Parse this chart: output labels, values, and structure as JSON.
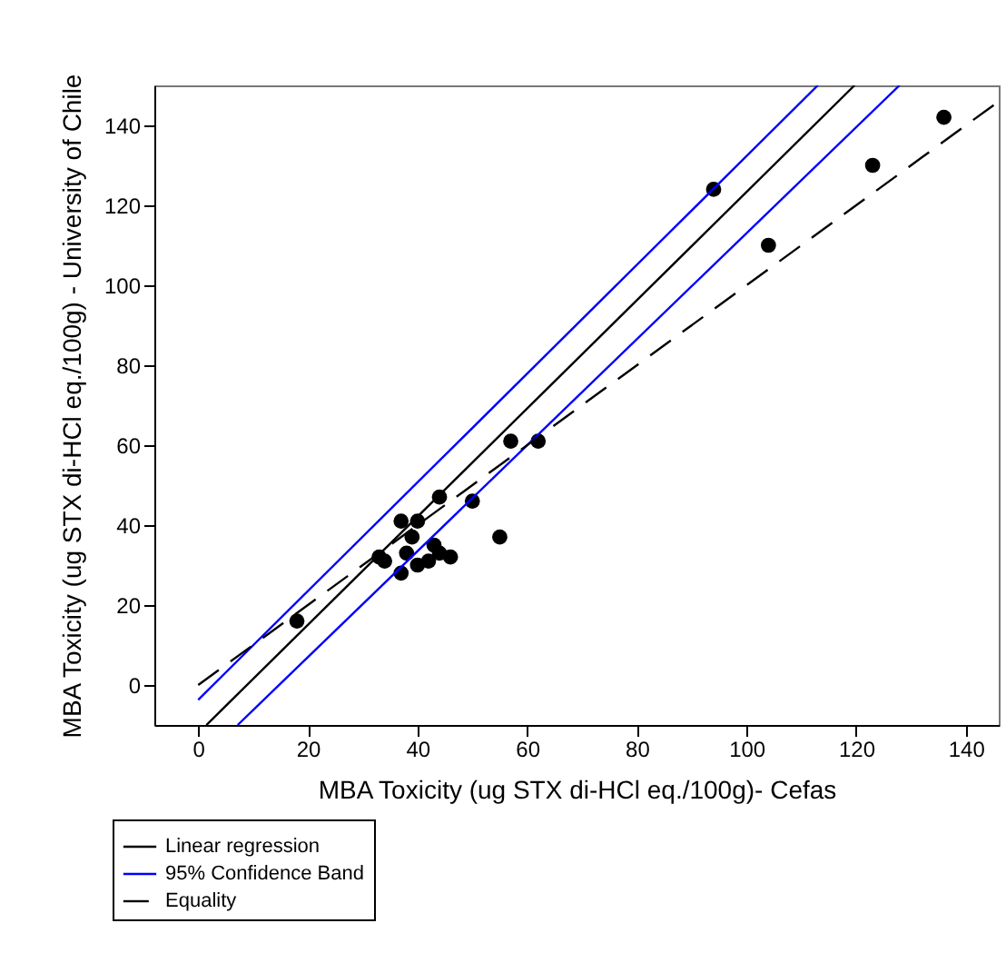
{
  "chart_data": {
    "type": "scatter",
    "xlabel": "MBA Toxicity (ug STX di-HCl eq./100g)- Cefas",
    "ylabel": "MBA Toxicity (ug STX di-HCl eq./100g) - University of Chile",
    "xlim": [
      -8,
      146
    ],
    "ylim": [
      -10,
      150
    ],
    "xticks": [
      0,
      20,
      40,
      60,
      80,
      100,
      120,
      140
    ],
    "yticks": [
      0,
      20,
      40,
      60,
      80,
      100,
      120,
      140
    ],
    "legend": "bottom left",
    "grid": false,
    "series": [
      {
        "type": "scatter",
        "color": "#000000",
        "marker": "circle",
        "x": [
          18,
          33,
          34,
          37,
          37,
          38,
          39,
          40,
          40,
          42,
          43,
          44,
          44,
          46,
          50,
          55,
          57,
          62,
          94,
          104,
          123,
          136
        ],
        "values": [
          16,
          32,
          31,
          41,
          28,
          33,
          37,
          41,
          30,
          31,
          35,
          47,
          33,
          32,
          46,
          37,
          61,
          61,
          124,
          110,
          130,
          142
        ]
      },
      {
        "type": "line",
        "name": "Linear regression",
        "color": "#000000",
        "line_style": "solid",
        "x": [
          1.5,
          119.7
        ],
        "values": [
          -10,
          150
        ]
      },
      {
        "type": "line",
        "name": "95% Confidence Band",
        "color": "#0000ff",
        "line_style": "solid",
        "x": [
          0,
          113
        ],
        "values": [
          -3.7,
          150
        ]
      },
      {
        "type": "line",
        "color": "#0000ff",
        "line_style": "solid",
        "x": [
          7.2,
          127.9
        ],
        "values": [
          -10,
          150
        ]
      },
      {
        "type": "line",
        "name": "Equality",
        "color": "#000000",
        "line_style": "dashed",
        "x": [
          0,
          146
        ],
        "values": [
          0,
          146
        ]
      }
    ]
  }
}
